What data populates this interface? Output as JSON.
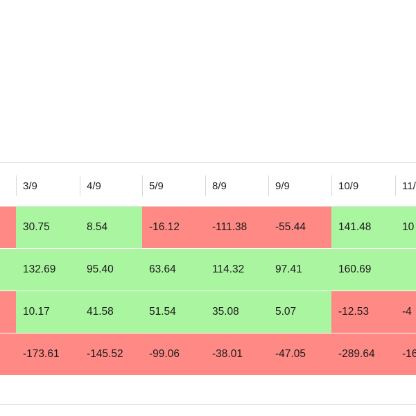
{
  "colors": {
    "positive": "#aaf5a0",
    "negative": "#ff8a85"
  },
  "table": {
    "columns": [
      "",
      "3/9",
      "4/9",
      "5/9",
      "8/9",
      "9/9",
      "10/9",
      "11/"
    ],
    "rows": [
      {
        "cells": [
          {
            "text": "",
            "sign": "negative"
          },
          {
            "text": "30.75",
            "sign": "positive"
          },
          {
            "text": "8.54",
            "sign": "positive"
          },
          {
            "text": "-16.12",
            "sign": "negative"
          },
          {
            "text": "-111.38",
            "sign": "negative"
          },
          {
            "text": "-55.44",
            "sign": "negative"
          },
          {
            "text": "141.48",
            "sign": "positive"
          },
          {
            "text": "10",
            "sign": "positive"
          }
        ]
      },
      {
        "cells": [
          {
            "text": "",
            "sign": "positive"
          },
          {
            "text": "132.69",
            "sign": "positive"
          },
          {
            "text": "95.40",
            "sign": "positive"
          },
          {
            "text": "63.64",
            "sign": "positive"
          },
          {
            "text": "114.32",
            "sign": "positive"
          },
          {
            "text": "97.41",
            "sign": "positive"
          },
          {
            "text": "160.69",
            "sign": "positive"
          },
          {
            "text": "",
            "sign": "positive"
          }
        ]
      },
      {
        "cells": [
          {
            "text": "",
            "sign": "negative"
          },
          {
            "text": "10.17",
            "sign": "positive"
          },
          {
            "text": "41.58",
            "sign": "positive"
          },
          {
            "text": "51.54",
            "sign": "positive"
          },
          {
            "text": "35.08",
            "sign": "positive"
          },
          {
            "text": "5.07",
            "sign": "positive"
          },
          {
            "text": "-12.53",
            "sign": "negative"
          },
          {
            "text": "-4",
            "sign": "negative"
          }
        ]
      },
      {
        "cells": [
          {
            "text": "",
            "sign": "negative"
          },
          {
            "text": "-173.61",
            "sign": "negative"
          },
          {
            "text": "-145.52",
            "sign": "negative"
          },
          {
            "text": "-99.06",
            "sign": "negative"
          },
          {
            "text": "-38.01",
            "sign": "negative"
          },
          {
            "text": "-47.05",
            "sign": "negative"
          },
          {
            "text": "-289.64",
            "sign": "negative"
          },
          {
            "text": "-16",
            "sign": "negative"
          }
        ]
      }
    ]
  }
}
